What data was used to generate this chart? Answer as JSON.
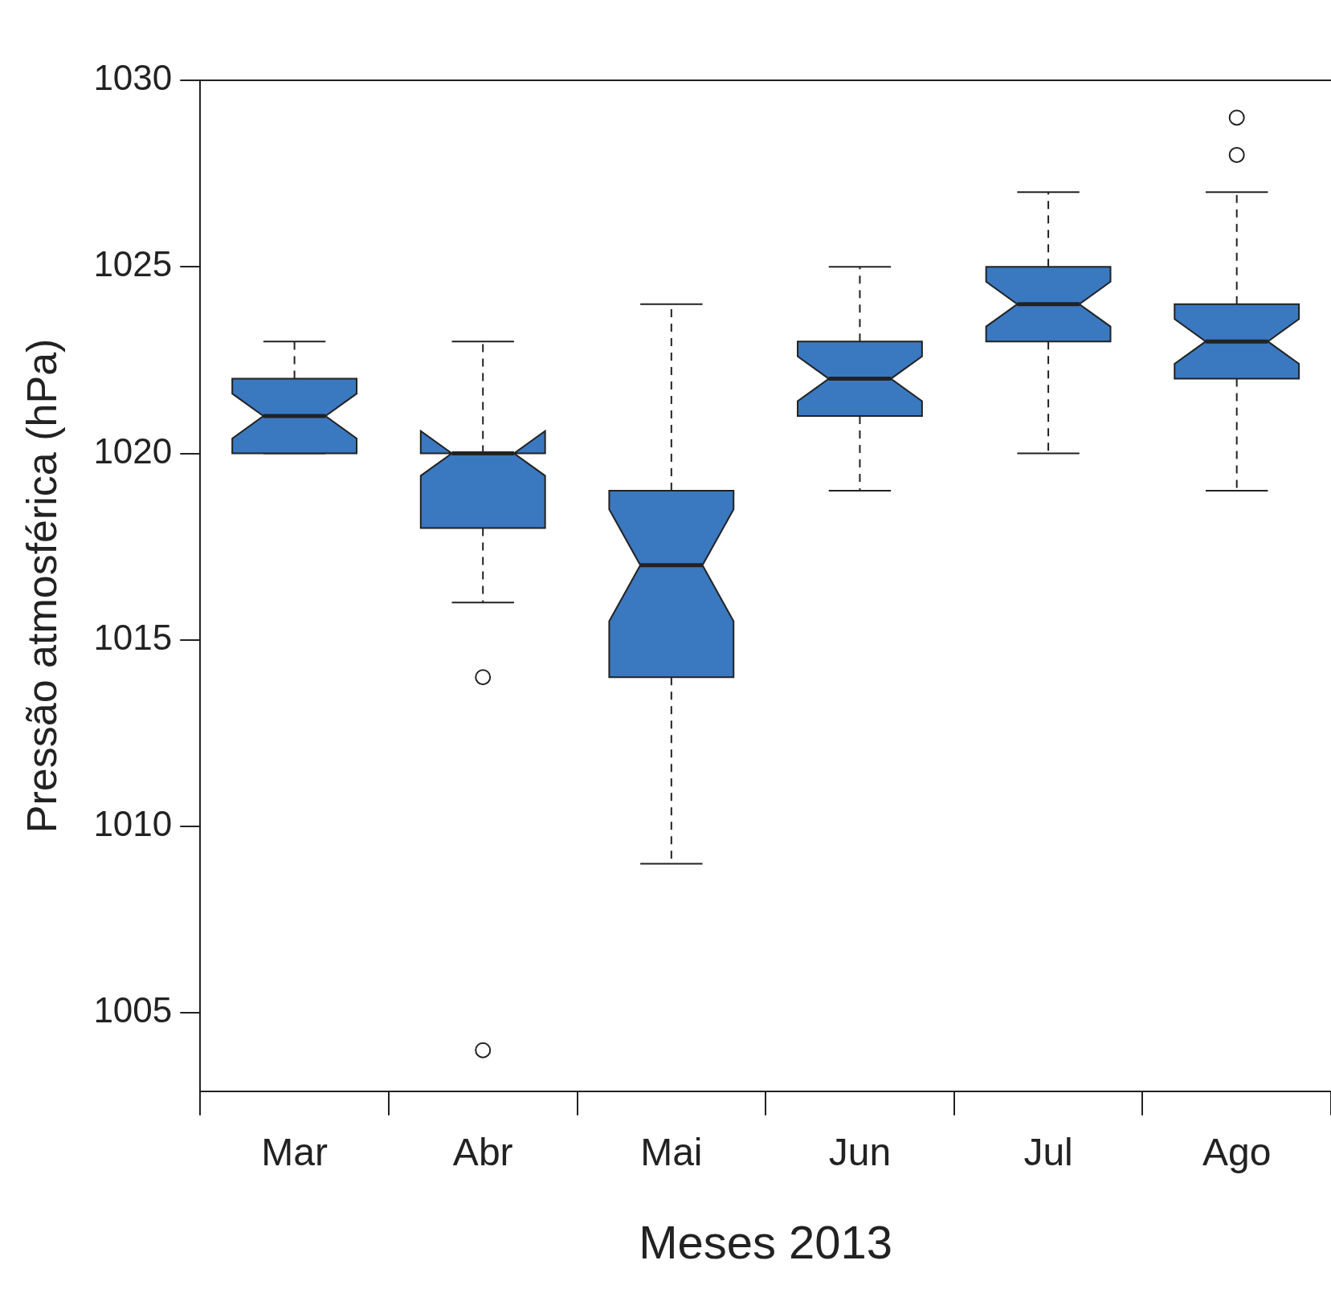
{
  "chart_data": {
    "type": "box",
    "xlabel": "Meses 2013",
    "ylabel": "Pressão atmosférica (hPa)",
    "categories": [
      "Mar",
      "Abr",
      "Mai",
      "Jun",
      "Jul",
      "Ago"
    ],
    "color": "#3a78c0",
    "boxes": [
      {
        "low": 1020,
        "q1": 1020,
        "median": 1021,
        "q3": 1022,
        "high": 1023
      },
      {
        "low": 1016,
        "q1": 1018,
        "median": 1020,
        "q3": 1020,
        "high": 1023,
        "outliers": [
          1014,
          1004
        ]
      },
      {
        "low": 1009,
        "q1": 1014,
        "median": 1017,
        "q3": 1019,
        "high": 1024
      },
      {
        "low": 1019,
        "q1": 1021,
        "median": 1022,
        "q3": 1023,
        "high": 1025
      },
      {
        "low": 1020,
        "q1": 1023,
        "median": 1024,
        "q3": 1025,
        "high": 1027
      },
      {
        "low": 1019,
        "q1": 1022,
        "median": 1023,
        "q3": 1024,
        "high": 1027,
        "outliers": [
          1028,
          1029
        ]
      }
    ],
    "ylim": [
      1002.9,
      1030
    ],
    "yticks": [
      1005,
      1010,
      1015,
      1020,
      1025,
      1030
    ]
  }
}
